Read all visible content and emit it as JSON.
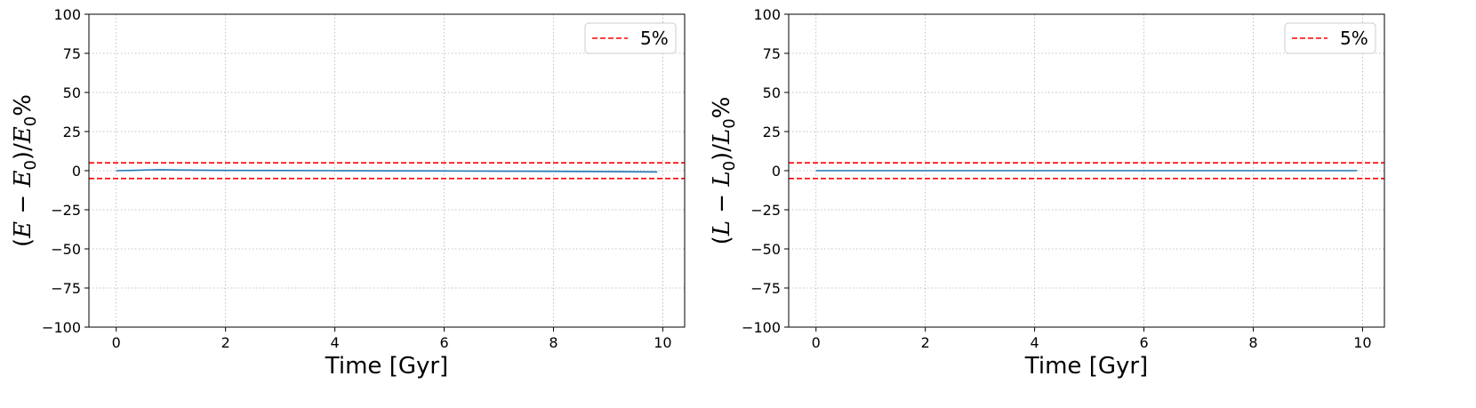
{
  "chart_data": [
    {
      "type": "line",
      "xlabel": "Time [Gyr]",
      "ylabel": "(E − E0)/E0%",
      "ylabel_parts": {
        "open": "(",
        "v1": "E",
        "minus": " − ",
        "v2": "E",
        "sub": "0",
        "mid": ")/",
        "v3": "E",
        "sub2": "0",
        "pct": "%"
      },
      "xlim": [
        -0.5,
        10.4
      ],
      "ylim": [
        -100,
        100
      ],
      "xticks": [
        0,
        2,
        4,
        6,
        8,
        10
      ],
      "yticks": [
        -100,
        -75,
        -50,
        -25,
        0,
        25,
        50,
        75,
        100
      ],
      "grid": true,
      "legend": "upper right",
      "series": [
        {
          "color": "#1f77b4",
          "style": "solid",
          "x": [
            0,
            0.3,
            0.6,
            0.8,
            1.2,
            2,
            3,
            4,
            5,
            6,
            7,
            8,
            9,
            9.9
          ],
          "y": [
            0,
            0.2,
            0.5,
            0.6,
            0.4,
            0.2,
            0.1,
            0.0,
            -0.1,
            -0.2,
            -0.3,
            -0.4,
            -0.6,
            -0.8
          ]
        }
      ],
      "hlines": [
        {
          "y": 5,
          "color": "#ff0000",
          "style": "dashed",
          "label": "5%"
        },
        {
          "y": -5,
          "color": "#ff0000",
          "style": "dashed"
        }
      ]
    },
    {
      "type": "line",
      "xlabel": "Time [Gyr]",
      "ylabel": "(L − L0)/L0%",
      "ylabel_parts": {
        "open": "(",
        "v1": "L",
        "minus": " − ",
        "v2": "L",
        "sub": "0",
        "mid": ")/",
        "v3": "L",
        "sub2": "0",
        "pct": "%"
      },
      "xlim": [
        -0.5,
        10.4
      ],
      "ylim": [
        -100,
        100
      ],
      "xticks": [
        0,
        2,
        4,
        6,
        8,
        10
      ],
      "yticks": [
        -100,
        -75,
        -50,
        -25,
        0,
        25,
        50,
        75,
        100
      ],
      "grid": true,
      "legend": "upper right",
      "series": [
        {
          "color": "#1f77b4",
          "style": "solid",
          "x": [
            0,
            2,
            4,
            6,
            8,
            9.9
          ],
          "y": [
            0,
            0,
            0,
            0,
            0,
            0
          ]
        }
      ],
      "hlines": [
        {
          "y": 5,
          "color": "#ff0000",
          "style": "dashed",
          "label": "5%"
        },
        {
          "y": -5,
          "color": "#ff0000",
          "style": "dashed"
        }
      ]
    }
  ]
}
